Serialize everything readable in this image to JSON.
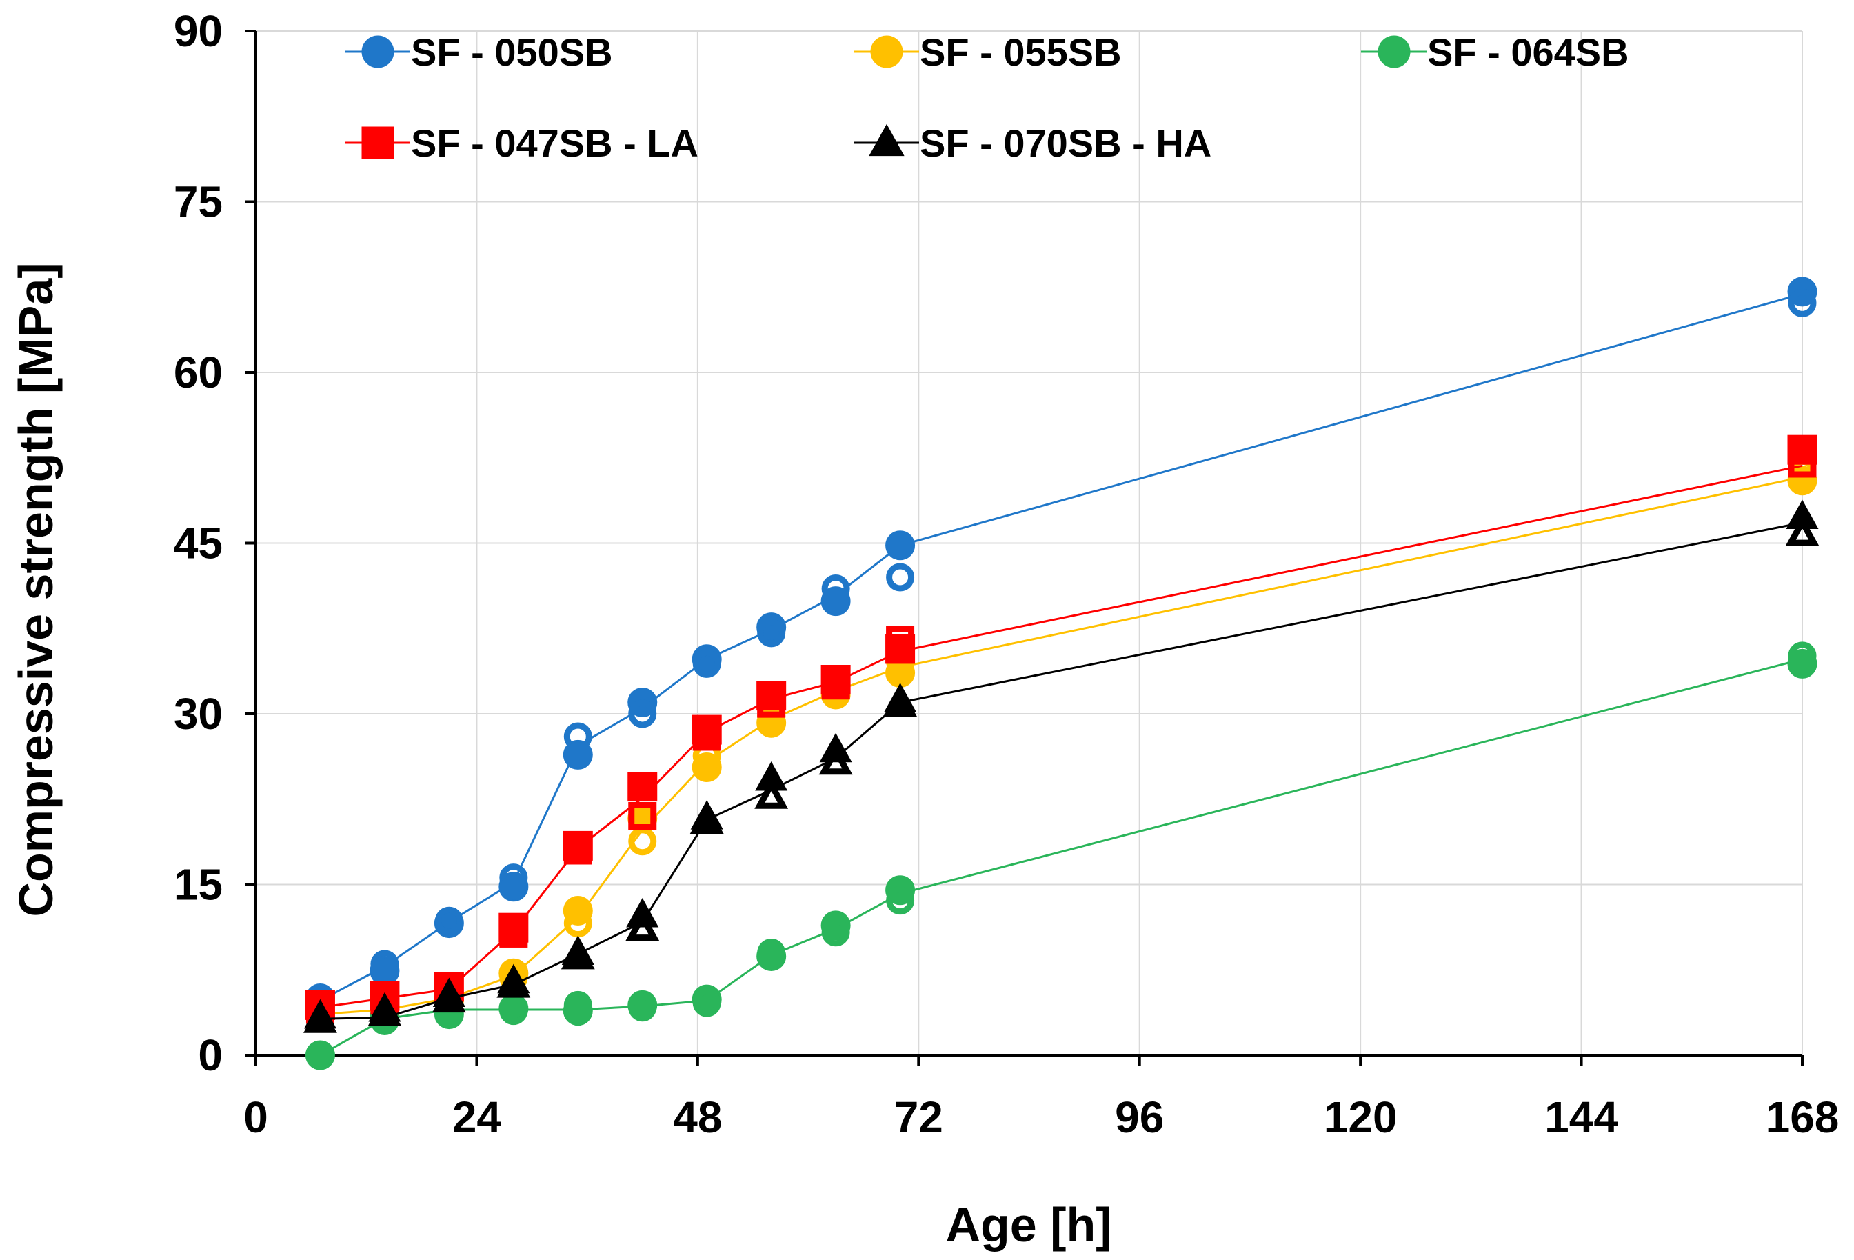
{
  "chart_data": {
    "type": "scatter",
    "xlabel": "Age [h]",
    "ylabel": "Compressive strength [MPa]",
    "xlim": [
      0,
      168
    ],
    "ylim": [
      0,
      90
    ],
    "xticks": [
      0,
      24,
      48,
      72,
      96,
      120,
      144,
      168
    ],
    "yticks": [
      0,
      15,
      30,
      45,
      60,
      75,
      90
    ],
    "grid": true,
    "legend": "top",
    "series": [
      {
        "name": "SF - 050SB",
        "color": "#1f77c9",
        "marker": "circle",
        "line_x": [
          7,
          14,
          21,
          28,
          35,
          42,
          49,
          56,
          63,
          70,
          168
        ],
        "line_y": [
          4.8,
          7.8,
          11.7,
          15.2,
          27.2,
          30.5,
          34.8,
          37.4,
          40.4,
          44.8,
          66.9
        ],
        "points": [
          {
            "x": 7,
            "y": 5.0,
            "filled": true
          },
          {
            "x": 7,
            "y": 4.6,
            "filled": false
          },
          {
            "x": 14,
            "y": 8.0,
            "filled": false
          },
          {
            "x": 14,
            "y": 7.4,
            "filled": true
          },
          {
            "x": 21,
            "y": 11.6,
            "filled": true
          },
          {
            "x": 21,
            "y": 11.8,
            "filled": false
          },
          {
            "x": 28,
            "y": 15.6,
            "filled": false
          },
          {
            "x": 28,
            "y": 14.8,
            "filled": true
          },
          {
            "x": 35,
            "y": 28.0,
            "filled": false
          },
          {
            "x": 35,
            "y": 26.4,
            "filled": true
          },
          {
            "x": 42,
            "y": 31.0,
            "filled": true
          },
          {
            "x": 42,
            "y": 30.0,
            "filled": false
          },
          {
            "x": 49,
            "y": 34.8,
            "filled": true
          },
          {
            "x": 49,
            "y": 34.4,
            "filled": false
          },
          {
            "x": 56,
            "y": 37.6,
            "filled": true
          },
          {
            "x": 56,
            "y": 37.1,
            "filled": false
          },
          {
            "x": 63,
            "y": 41.0,
            "filled": false
          },
          {
            "x": 63,
            "y": 39.9,
            "filled": true
          },
          {
            "x": 70,
            "y": 44.8,
            "filled": true
          },
          {
            "x": 70,
            "y": 42.0,
            "filled": false
          },
          {
            "x": 168,
            "y": 67.1,
            "filled": true
          },
          {
            "x": 168,
            "y": 66.1,
            "filled": false
          }
        ]
      },
      {
        "name": "SF - 055SB",
        "color": "#ffc000",
        "marker": "circle",
        "line_x": [
          7,
          14,
          21,
          28,
          35,
          42,
          49,
          56,
          63,
          70,
          168
        ],
        "line_y": [
          3.6,
          4.0,
          5.0,
          7.0,
          12.1,
          19.8,
          25.8,
          29.5,
          32.0,
          34.1,
          50.8
        ],
        "points": [
          {
            "x": 7,
            "y": 3.8,
            "filled": true
          },
          {
            "x": 7,
            "y": 3.4,
            "filled": false
          },
          {
            "x": 14,
            "y": 4.2,
            "filled": true
          },
          {
            "x": 14,
            "y": 3.8,
            "filled": false
          },
          {
            "x": 21,
            "y": 5.2,
            "filled": false
          },
          {
            "x": 21,
            "y": 4.8,
            "filled": true
          },
          {
            "x": 28,
            "y": 7.2,
            "filled": true
          },
          {
            "x": 28,
            "y": 6.8,
            "filled": false
          },
          {
            "x": 35,
            "y": 12.7,
            "filled": true
          },
          {
            "x": 35,
            "y": 11.6,
            "filled": false
          },
          {
            "x": 42,
            "y": 20.8,
            "filled": true
          },
          {
            "x": 42,
            "y": 18.8,
            "filled": false
          },
          {
            "x": 49,
            "y": 26.3,
            "filled": false
          },
          {
            "x": 49,
            "y": 25.3,
            "filled": true
          },
          {
            "x": 56,
            "y": 29.8,
            "filled": false
          },
          {
            "x": 56,
            "y": 29.2,
            "filled": true
          },
          {
            "x": 63,
            "y": 32.4,
            "filled": false
          },
          {
            "x": 63,
            "y": 31.7,
            "filled": true
          },
          {
            "x": 70,
            "y": 34.6,
            "filled": false
          },
          {
            "x": 70,
            "y": 33.6,
            "filled": true
          },
          {
            "x": 168,
            "y": 51.2,
            "filled": false
          },
          {
            "x": 168,
            "y": 50.5,
            "filled": true
          }
        ]
      },
      {
        "name": "SF - 064SB",
        "color": "#2ab55a",
        "marker": "circle",
        "line_x": [
          7,
          14,
          21,
          28,
          35,
          42,
          49,
          56,
          63,
          70,
          168
        ],
        "line_y": [
          0.0,
          3.2,
          4.0,
          4.0,
          4.0,
          4.3,
          4.8,
          8.8,
          11.1,
          14.2,
          34.8
        ],
        "points": [
          {
            "x": 7,
            "y": 0.0,
            "filled": true
          },
          {
            "x": 14,
            "y": 3.4,
            "filled": true
          },
          {
            "x": 14,
            "y": 3.0,
            "filled": false
          },
          {
            "x": 21,
            "y": 4.0,
            "filled": false
          },
          {
            "x": 21,
            "y": 3.6,
            "filled": true
          },
          {
            "x": 28,
            "y": 4.1,
            "filled": true
          },
          {
            "x": 28,
            "y": 3.9,
            "filled": false
          },
          {
            "x": 35,
            "y": 4.4,
            "filled": false
          },
          {
            "x": 35,
            "y": 3.9,
            "filled": true
          },
          {
            "x": 42,
            "y": 4.4,
            "filled": true
          },
          {
            "x": 42,
            "y": 4.2,
            "filled": false
          },
          {
            "x": 49,
            "y": 4.9,
            "filled": true
          },
          {
            "x": 49,
            "y": 4.6,
            "filled": false
          },
          {
            "x": 56,
            "y": 9.0,
            "filled": false
          },
          {
            "x": 56,
            "y": 8.7,
            "filled": true
          },
          {
            "x": 63,
            "y": 11.4,
            "filled": true
          },
          {
            "x": 63,
            "y": 10.8,
            "filled": false
          },
          {
            "x": 70,
            "y": 14.5,
            "filled": true
          },
          {
            "x": 70,
            "y": 13.6,
            "filled": false
          },
          {
            "x": 168,
            "y": 35.1,
            "filled": false
          },
          {
            "x": 168,
            "y": 34.4,
            "filled": true
          }
        ]
      },
      {
        "name": "SF - 047SB - LA",
        "color": "#ff0000",
        "marker": "square",
        "line_x": [
          7,
          14,
          21,
          28,
          35,
          42,
          49,
          56,
          63,
          70,
          168
        ],
        "line_y": [
          4.2,
          5.0,
          5.8,
          10.9,
          18.2,
          22.6,
          28.4,
          31.3,
          32.8,
          35.5,
          51.8
        ],
        "points": [
          {
            "x": 7,
            "y": 4.4,
            "filled": true
          },
          {
            "x": 7,
            "y": 4.0,
            "filled": false
          },
          {
            "x": 14,
            "y": 5.2,
            "filled": true
          },
          {
            "x": 14,
            "y": 4.8,
            "filled": false
          },
          {
            "x": 21,
            "y": 6.0,
            "filled": true
          },
          {
            "x": 21,
            "y": 5.6,
            "filled": false
          },
          {
            "x": 28,
            "y": 11.2,
            "filled": true
          },
          {
            "x": 28,
            "y": 10.7,
            "filled": false
          },
          {
            "x": 35,
            "y": 18.4,
            "filled": true
          },
          {
            "x": 35,
            "y": 18.0,
            "filled": false
          },
          {
            "x": 42,
            "y": 23.6,
            "filled": true
          },
          {
            "x": 42,
            "y": 21.0,
            "filled": false
          },
          {
            "x": 49,
            "y": 28.6,
            "filled": true
          },
          {
            "x": 49,
            "y": 28.0,
            "filled": false
          },
          {
            "x": 56,
            "y": 31.6,
            "filled": true
          },
          {
            "x": 56,
            "y": 30.9,
            "filled": false
          },
          {
            "x": 63,
            "y": 33.0,
            "filled": true
          },
          {
            "x": 63,
            "y": 32.5,
            "filled": false
          },
          {
            "x": 70,
            "y": 36.5,
            "filled": false
          },
          {
            "x": 70,
            "y": 35.7,
            "filled": true
          },
          {
            "x": 168,
            "y": 53.2,
            "filled": true
          },
          {
            "x": 168,
            "y": 52.0,
            "filled": false
          }
        ]
      },
      {
        "name": "SF - 070SB - HA",
        "color": "#000000",
        "marker": "triangle",
        "line_x": [
          7,
          14,
          21,
          28,
          35,
          42,
          49,
          56,
          63,
          70,
          168
        ],
        "line_y": [
          3.2,
          3.3,
          5.0,
          6.2,
          8.9,
          11.7,
          20.7,
          23.3,
          26.1,
          31.0,
          46.8
        ],
        "points": [
          {
            "x": 7,
            "y": 3.4,
            "filled": true
          },
          {
            "x": 7,
            "y": 3.0,
            "filled": false
          },
          {
            "x": 14,
            "y": 4.0,
            "filled": true
          },
          {
            "x": 14,
            "y": 3.6,
            "filled": false
          },
          {
            "x": 21,
            "y": 5.3,
            "filled": true
          },
          {
            "x": 21,
            "y": 4.8,
            "filled": false
          },
          {
            "x": 28,
            "y": 6.5,
            "filled": true
          },
          {
            "x": 28,
            "y": 6.1,
            "filled": false
          },
          {
            "x": 35,
            "y": 9.0,
            "filled": true
          },
          {
            "x": 35,
            "y": 8.6,
            "filled": false
          },
          {
            "x": 42,
            "y": 12.3,
            "filled": true
          },
          {
            "x": 42,
            "y": 11.1,
            "filled": false
          },
          {
            "x": 49,
            "y": 20.9,
            "filled": true
          },
          {
            "x": 49,
            "y": 20.5,
            "filled": false
          },
          {
            "x": 56,
            "y": 24.3,
            "filled": true
          },
          {
            "x": 56,
            "y": 22.7,
            "filled": false
          },
          {
            "x": 63,
            "y": 26.8,
            "filled": true
          },
          {
            "x": 63,
            "y": 25.7,
            "filled": false
          },
          {
            "x": 70,
            "y": 31.2,
            "filled": true
          },
          {
            "x": 70,
            "y": 30.8,
            "filled": false
          },
          {
            "x": 168,
            "y": 47.3,
            "filled": true
          },
          {
            "x": 168,
            "y": 45.8,
            "filled": false
          }
        ]
      }
    ]
  }
}
